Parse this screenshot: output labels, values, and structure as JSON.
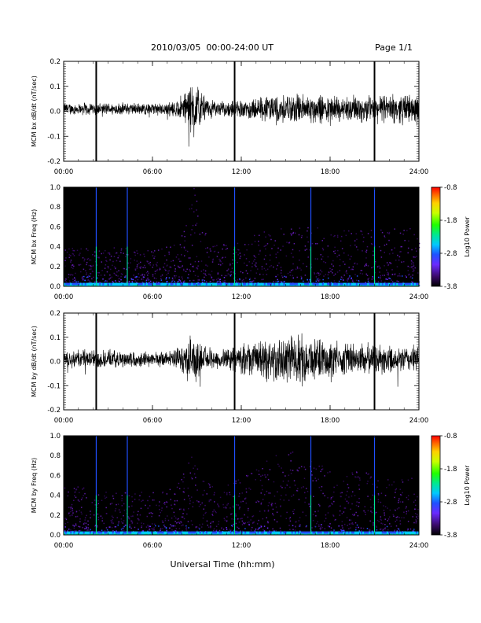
{
  "header": {
    "date_range": "2010/03/05  00:00-24:00 UT",
    "page": "Page 1/1"
  },
  "colors": {
    "trace": "#000000",
    "spectrogram_background": "#000000",
    "colorbar_stops": [
      "#000000",
      "#3a0a6a",
      "#6a2aff",
      "#2050ff",
      "#00c8ff",
      "#00e890",
      "#20ff00",
      "#c8ff00",
      "#ffd000",
      "#ff6000",
      "#ff0000"
    ]
  },
  "chart_data": [
    {
      "type": "line",
      "id": "bx-dbdt",
      "ylabel": "MCM bx dB/dt (nT/sec)",
      "ylim": [
        -0.2,
        0.2
      ],
      "yticks": [
        "-0.2",
        "-0.1",
        "0.0",
        "0.1",
        "0.2"
      ],
      "xlim_hours": [
        0,
        24
      ],
      "xticks": [
        "00:00",
        "06:00",
        "12:00",
        "18:00",
        "24:00"
      ],
      "spike_times_hours": [
        2.2,
        11.55,
        21.0
      ],
      "activity_envelope": {
        "hours": [
          0,
          1,
          3,
          6,
          7.5,
          8.0,
          8.4,
          8.8,
          9.2,
          9.6,
          10.2,
          11,
          12,
          13,
          14,
          15,
          16,
          17,
          18,
          19,
          20,
          21,
          22,
          23,
          24
        ],
        "amplitude": [
          0.02,
          0.02,
          0.02,
          0.02,
          0.025,
          0.05,
          0.07,
          0.11,
          0.06,
          0.04,
          0.025,
          0.025,
          0.03,
          0.04,
          0.045,
          0.05,
          0.05,
          0.05,
          0.045,
          0.045,
          0.045,
          0.045,
          0.045,
          0.05,
          0.05
        ]
      }
    },
    {
      "type": "heatmap",
      "id": "bx-freq",
      "ylabel": "MCM bx Freq (Hz)",
      "ylim": [
        0.0,
        1.0
      ],
      "yticks": [
        "0.0",
        "0.2",
        "0.4",
        "0.6",
        "0.8",
        "1.0"
      ],
      "xlim_hours": [
        0,
        24
      ],
      "xticks": [
        "00:00",
        "06:00",
        "12:00",
        "18:00",
        "24:00"
      ],
      "colorbar": {
        "label": "Log10 Power",
        "range": [
          -3.8,
          -0.8
        ],
        "ticks": [
          "-0.8",
          "-1.8",
          "-2.8",
          "-3.8"
        ]
      },
      "line_times_hours": [
        2.2,
        4.3,
        11.55,
        16.7,
        21.0
      ]
    },
    {
      "type": "line",
      "id": "by-dbdt",
      "ylabel": "MCM by dB/dt (nT/sec)",
      "ylim": [
        -0.2,
        0.2
      ],
      "yticks": [
        "-0.2",
        "-0.1",
        "0.0",
        "0.1",
        "0.2"
      ],
      "xlim_hours": [
        0,
        24
      ],
      "xticks": [
        "00:00",
        "06:00",
        "12:00",
        "18:00",
        "24:00"
      ],
      "spike_times_hours": [
        2.2,
        11.55,
        21.0
      ],
      "activity_envelope": {
        "hours": [
          0,
          1,
          3,
          6,
          7.5,
          8.0,
          8.4,
          8.8,
          9.2,
          9.6,
          10.2,
          11,
          12,
          13,
          14,
          15,
          16,
          17,
          18,
          19,
          20,
          21,
          22,
          23,
          24
        ],
        "amplitude": [
          0.035,
          0.035,
          0.03,
          0.025,
          0.03,
          0.05,
          0.07,
          0.09,
          0.06,
          0.04,
          0.035,
          0.035,
          0.05,
          0.06,
          0.075,
          0.085,
          0.08,
          0.07,
          0.06,
          0.055,
          0.055,
          0.05,
          0.045,
          0.045,
          0.045
        ]
      }
    },
    {
      "type": "heatmap",
      "id": "by-freq",
      "ylabel": "MCM by Freq (Hz)",
      "ylim": [
        0.0,
        1.0
      ],
      "yticks": [
        "0.0",
        "0.2",
        "0.4",
        "0.6",
        "0.8",
        "1.0"
      ],
      "xlim_hours": [
        0,
        24
      ],
      "xticks": [
        "00:00",
        "06:00",
        "12:00",
        "18:00",
        "24:00"
      ],
      "colorbar": {
        "label": "Log10 Power",
        "range": [
          -3.8,
          -0.8
        ],
        "ticks": [
          "-0.8",
          "-1.8",
          "-2.8",
          "-3.8"
        ]
      },
      "line_times_hours": [
        2.2,
        4.3,
        11.55,
        16.7,
        21.0
      ]
    }
  ],
  "xlabel": "Universal Time (hh:mm)"
}
